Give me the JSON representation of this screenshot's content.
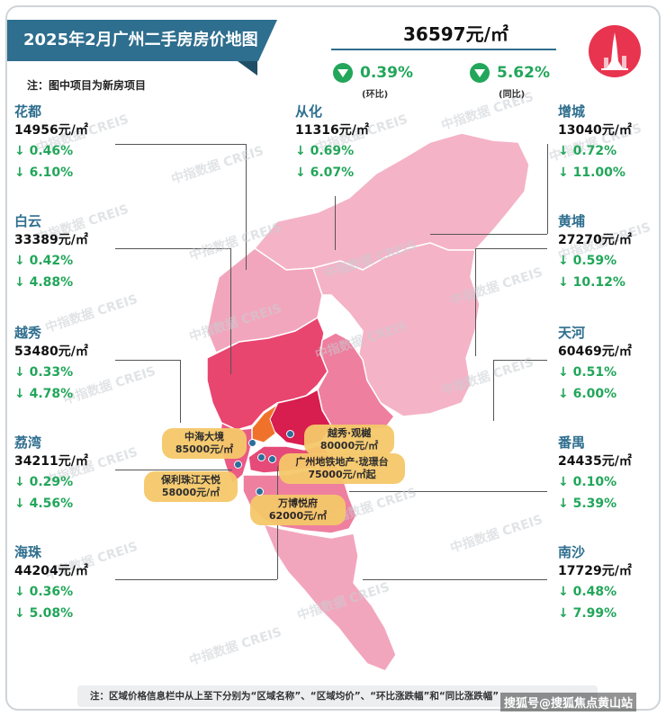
{
  "header": {
    "title": "2025年2月广州二手房房价地图",
    "note": "注：图中项目为新房项目",
    "avg_price": "36597元/㎡",
    "mom_change": "0.39%",
    "mom_label": "(环比)",
    "yoy_change": "5.62%",
    "yoy_label": "(同比)"
  },
  "districts": [
    {
      "name": "花都",
      "price": "14956元/㎡",
      "mom": "↓ 0.46%",
      "yoy": "↓ 6.10%"
    },
    {
      "name": "从化",
      "price": "11316元/㎡",
      "mom": "↓ 0.69%",
      "yoy": "↓ 6.07%"
    },
    {
      "name": "增城",
      "price": "13040元/㎡",
      "mom": "↓ 0.72%",
      "yoy": "↓ 11.00%"
    },
    {
      "name": "白云",
      "price": "33389元/㎡",
      "mom": "↓ 0.42%",
      "yoy": "↓ 4.88%"
    },
    {
      "name": "黄埔",
      "price": "27270元/㎡",
      "mom": "↓ 0.59%",
      "yoy": "↓ 10.12%"
    },
    {
      "name": "越秀",
      "price": "53480元/㎡",
      "mom": "↓ 0.33%",
      "yoy": "↓ 4.78%"
    },
    {
      "name": "天河",
      "price": "60469元/㎡",
      "mom": "↓ 0.51%",
      "yoy": "↓ 6.00%"
    },
    {
      "name": "荔湾",
      "price": "34211元/㎡",
      "mom": "↓ 0.29%",
      "yoy": "↓ 4.56%"
    },
    {
      "name": "番禺",
      "price": "24435元/㎡",
      "mom": "↓ 0.10%",
      "yoy": "↓ 5.39%"
    },
    {
      "name": "海珠",
      "price": "44204元/㎡",
      "mom": "↓ 0.36%",
      "yoy": "↓ 5.08%"
    },
    {
      "name": "南沙",
      "price": "17729元/㎡",
      "mom": "↓ 0.48%",
      "yoy": "↓ 7.99%"
    }
  ],
  "projects": [
    {
      "name": "中海大境",
      "price": "85000元/㎡"
    },
    {
      "name": "越秀·观樾",
      "price": "80000元/㎡"
    },
    {
      "name": "广州地铁地产·珑璟台",
      "price": "75000元/㎡起"
    },
    {
      "name": "保利珠江天悦",
      "price": "58000元/㎡"
    },
    {
      "name": "万博悦府",
      "price": "62000元/㎡"
    }
  ],
  "watermark": "中指数据 CREIS",
  "footnote": "注：区域价格信息栏中从上至下分别为“区域名称”、“区域均价”、“环比涨跌幅”和“同比涨跌幅”",
  "source": "搜狐号@搜狐焦点黄山站",
  "colors": {
    "accent": "#2e6e8e",
    "down": "#22a65a",
    "light_pink": "#f2a6bd",
    "mid_pink": "#ee7f9f",
    "deep_pink": "#e03a6a",
    "crimson": "#d81d4f",
    "project_tag": "#f5c86a",
    "logo": "#e8344f"
  },
  "icons": {
    "down_badge": "down-triangle-circle-icon",
    "logo": "tower-logo-icon"
  }
}
